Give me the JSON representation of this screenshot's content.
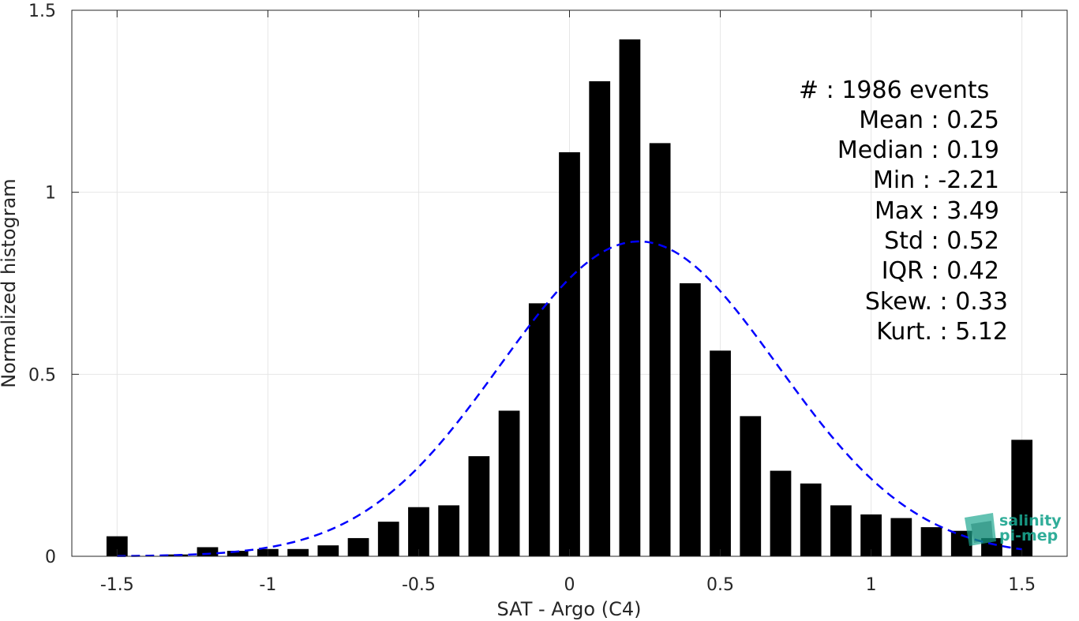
{
  "chart_data": {
    "type": "bar",
    "xlabel": "SAT - Argo (C4)",
    "ylabel": "Normalized histogram",
    "xlim": [
      -1.65,
      1.65
    ],
    "ylim": [
      0,
      1.5
    ],
    "x_ticks": [
      -1.5,
      -1,
      -0.5,
      0,
      0.5,
      1,
      1.5
    ],
    "x_tick_labels": [
      "-1.5",
      "-1",
      "-0.5",
      "0",
      "0.5",
      "1",
      "1.5"
    ],
    "y_ticks": [
      0,
      0.5,
      1,
      1.5
    ],
    "y_tick_labels": [
      "0",
      "0.5",
      "1",
      "1.5"
    ],
    "grid": true,
    "bar_color": "#000000",
    "bins": [
      {
        "x": -1.5,
        "y": 0.055
      },
      {
        "x": -1.4,
        "y": 0.0
      },
      {
        "x": -1.3,
        "y": 0.005
      },
      {
        "x": -1.2,
        "y": 0.025
      },
      {
        "x": -1.1,
        "y": 0.015
      },
      {
        "x": -1.0,
        "y": 0.02
      },
      {
        "x": -0.9,
        "y": 0.02
      },
      {
        "x": -0.8,
        "y": 0.03
      },
      {
        "x": -0.7,
        "y": 0.05
      },
      {
        "x": -0.6,
        "y": 0.095
      },
      {
        "x": -0.5,
        "y": 0.135
      },
      {
        "x": -0.4,
        "y": 0.14
      },
      {
        "x": -0.3,
        "y": 0.275
      },
      {
        "x": -0.2,
        "y": 0.4
      },
      {
        "x": -0.1,
        "y": 0.695
      },
      {
        "x": 0.0,
        "y": 1.11
      },
      {
        "x": 0.1,
        "y": 1.305
      },
      {
        "x": 0.2,
        "y": 1.42
      },
      {
        "x": 0.3,
        "y": 1.135
      },
      {
        "x": 0.4,
        "y": 0.75
      },
      {
        "x": 0.5,
        "y": 0.565
      },
      {
        "x": 0.6,
        "y": 0.385
      },
      {
        "x": 0.7,
        "y": 0.235
      },
      {
        "x": 0.8,
        "y": 0.2
      },
      {
        "x": 0.9,
        "y": 0.14
      },
      {
        "x": 1.0,
        "y": 0.115
      },
      {
        "x": 1.1,
        "y": 0.105
      },
      {
        "x": 1.2,
        "y": 0.08
      },
      {
        "x": 1.3,
        "y": 0.07
      },
      {
        "x": 1.4,
        "y": 0.05
      },
      {
        "x": 1.5,
        "y": 0.32
      }
    ],
    "fit_curve": {
      "style": "dashed",
      "color": "#0000ff",
      "mean": 0.23,
      "std": 0.46,
      "peak": 0.865,
      "x_range": [
        -1.5,
        1.5
      ]
    },
    "annotations": [
      "#  : 1986 events",
      "Mean : 0.25",
      "Median : 0.19",
      "Min : -2.21",
      "Max : 3.49",
      "Std : 0.52",
      "IQR : 0.42",
      "Skew. : 0.33",
      "Kurt. : 5.12"
    ]
  },
  "logo": {
    "line1": "salinity",
    "line2": "pi-mep",
    "color": "#1aa58e"
  }
}
